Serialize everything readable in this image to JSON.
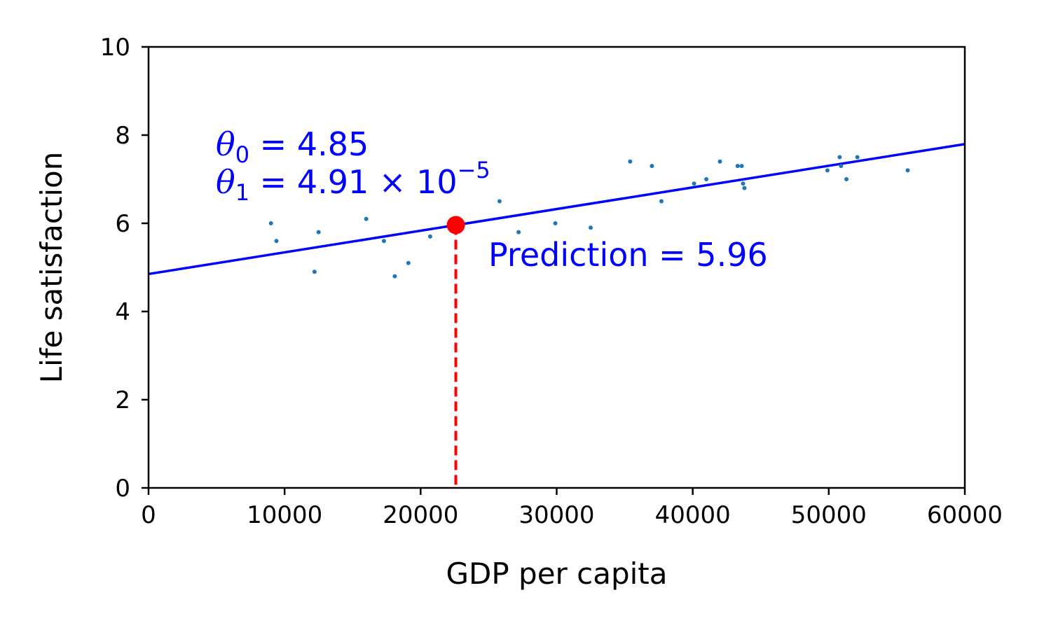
{
  "chart_data": {
    "type": "scatter",
    "xlabel": "GDP per capita",
    "ylabel": "Life satisfaction",
    "xlim": [
      0,
      60000
    ],
    "ylim": [
      0,
      10
    ],
    "xticks": [
      0,
      10000,
      20000,
      30000,
      40000,
      50000,
      60000
    ],
    "yticks": [
      0,
      2,
      4,
      6,
      8,
      10
    ],
    "grid": false,
    "colors": {
      "points": "#1f77b4",
      "fit_line": "#0000ff",
      "prediction": "#ff0000",
      "annotation_text": "#0000ff"
    },
    "points": [
      {
        "x": 9000,
        "y": 6.0
      },
      {
        "x": 9400,
        "y": 5.6
      },
      {
        "x": 12200,
        "y": 4.9
      },
      {
        "x": 12500,
        "y": 5.8
      },
      {
        "x": 16000,
        "y": 6.1
      },
      {
        "x": 17300,
        "y": 5.6
      },
      {
        "x": 18100,
        "y": 4.8
      },
      {
        "x": 19100,
        "y": 5.1
      },
      {
        "x": 20700,
        "y": 5.7
      },
      {
        "x": 25800,
        "y": 6.5
      },
      {
        "x": 27200,
        "y": 5.8
      },
      {
        "x": 29900,
        "y": 6.0
      },
      {
        "x": 32500,
        "y": 5.9
      },
      {
        "x": 35400,
        "y": 7.4
      },
      {
        "x": 37000,
        "y": 7.3
      },
      {
        "x": 37700,
        "y": 6.5
      },
      {
        "x": 40100,
        "y": 6.9
      },
      {
        "x": 41000,
        "y": 7.0
      },
      {
        "x": 42000,
        "y": 7.4
      },
      {
        "x": 43300,
        "y": 7.3
      },
      {
        "x": 43600,
        "y": 7.3
      },
      {
        "x": 43700,
        "y": 6.9
      },
      {
        "x": 43800,
        "y": 6.8
      },
      {
        "x": 49900,
        "y": 7.2
      },
      {
        "x": 50800,
        "y": 7.5
      },
      {
        "x": 50900,
        "y": 7.3
      },
      {
        "x": 51300,
        "y": 7.0
      },
      {
        "x": 52100,
        "y": 7.5
      },
      {
        "x": 55800,
        "y": 7.2
      }
    ],
    "fit_line": {
      "intercept": 4.85,
      "slope": 4.91e-05
    },
    "prediction": {
      "x": 22587,
      "y": 5.96,
      "label": "Prediction = 5.96"
    },
    "annotations": {
      "theta0": {
        "symbol": "θ",
        "subscript": "0",
        "equals": " = ",
        "value": "4.85"
      },
      "theta1": {
        "symbol": "θ",
        "subscript": "1",
        "equals": " = ",
        "value": "4.91 × 10",
        "exponent": "−5"
      }
    }
  }
}
